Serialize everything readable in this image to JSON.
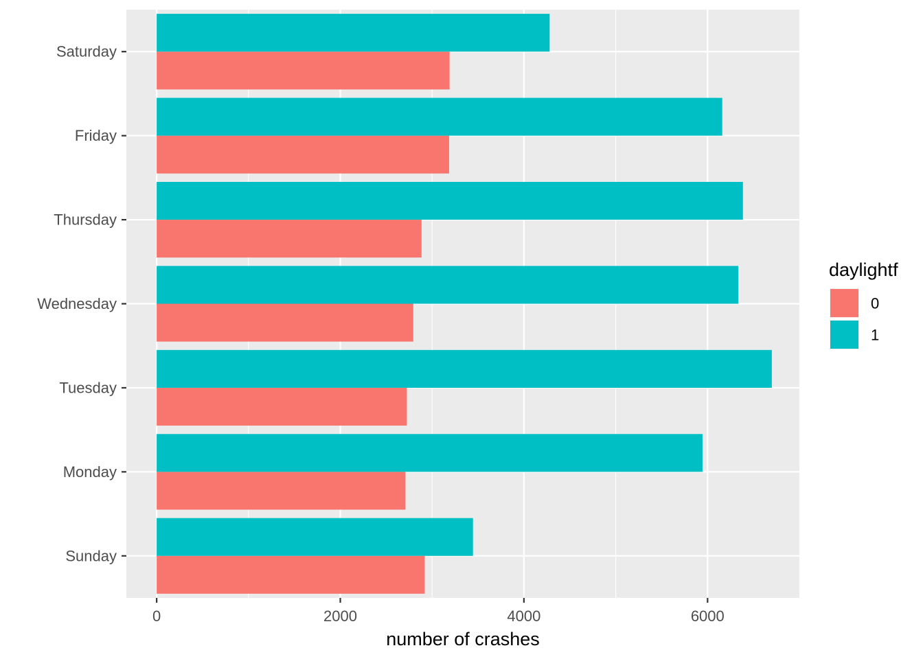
{
  "chart_data": {
    "type": "bar",
    "orientation": "horizontal",
    "title": "",
    "xlabel": "number of crashes",
    "ylabel": "",
    "categories": [
      "Sunday",
      "Monday",
      "Tuesday",
      "Wednesday",
      "Thursday",
      "Friday",
      "Saturday"
    ],
    "series": [
      {
        "name": "0",
        "color": "#F8766D",
        "values": [
          2920,
          2710,
          2725,
          2795,
          2885,
          3185,
          3190
        ]
      },
      {
        "name": "1",
        "color": "#00BFC4",
        "values": [
          3445,
          5945,
          6700,
          6335,
          6385,
          6160,
          4280
        ]
      }
    ],
    "xlim": [
      -330,
      7000
    ],
    "xticks": [
      0,
      2000,
      4000,
      6000
    ],
    "xtick_labels": [
      "0",
      "2000",
      "4000",
      "6000"
    ],
    "grid": true,
    "panel_background": "#EBEBEB",
    "legend": {
      "title": "daylightf",
      "position": "right"
    }
  }
}
